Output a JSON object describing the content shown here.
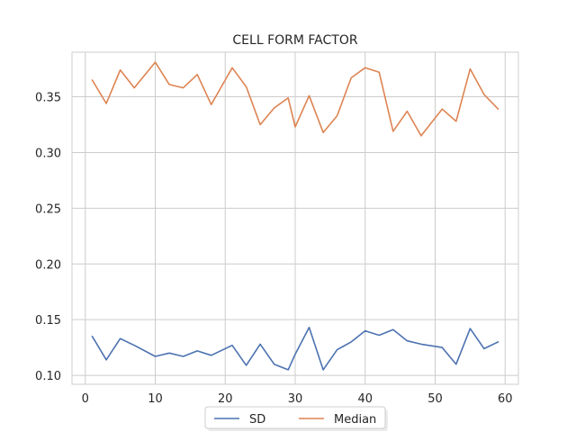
{
  "chart_data": {
    "type": "line",
    "title": "CELL FORM FACTOR",
    "xlabel": "",
    "ylabel": "",
    "xlim": [
      -1.9,
      61.9
    ],
    "ylim": [
      0.092,
      0.39
    ],
    "x_ticks": [
      0,
      10,
      20,
      30,
      40,
      50,
      60
    ],
    "y_ticks": [
      0.1,
      0.15,
      0.2,
      0.25,
      0.3,
      0.35
    ],
    "y_tick_labels": [
      "0.10",
      "0.15",
      "0.20",
      "0.25",
      "0.30",
      "0.35"
    ],
    "grid": true,
    "legend_placement": "bottom-center",
    "x": [
      1,
      3,
      5,
      7,
      10,
      12,
      14,
      16,
      18,
      21,
      23,
      25,
      27,
      29,
      30,
      32,
      34,
      36,
      38,
      40,
      42,
      44,
      46,
      48,
      51,
      53,
      55,
      57,
      59
    ],
    "series": [
      {
        "name": "SD",
        "color": "#4c72b0",
        "values": [
          0.135,
          0.114,
          0.133,
          0.127,
          0.117,
          0.12,
          0.117,
          0.122,
          0.118,
          0.127,
          0.109,
          0.128,
          0.11,
          0.105,
          0.119,
          0.143,
          0.105,
          0.123,
          0.13,
          0.14,
          0.136,
          0.141,
          0.131,
          0.128,
          0.125,
          0.11,
          0.142,
          0.124,
          0.13
        ]
      },
      {
        "name": "Median",
        "color": "#dd8452",
        "values": [
          0.365,
          0.344,
          0.374,
          0.358,
          0.381,
          0.361,
          0.358,
          0.37,
          0.343,
          0.376,
          0.359,
          0.325,
          0.34,
          0.349,
          0.323,
          0.351,
          0.318,
          0.333,
          0.367,
          0.376,
          0.372,
          0.319,
          0.337,
          0.315,
          0.339,
          0.328,
          0.375,
          0.352,
          0.339
        ]
      }
    ]
  }
}
